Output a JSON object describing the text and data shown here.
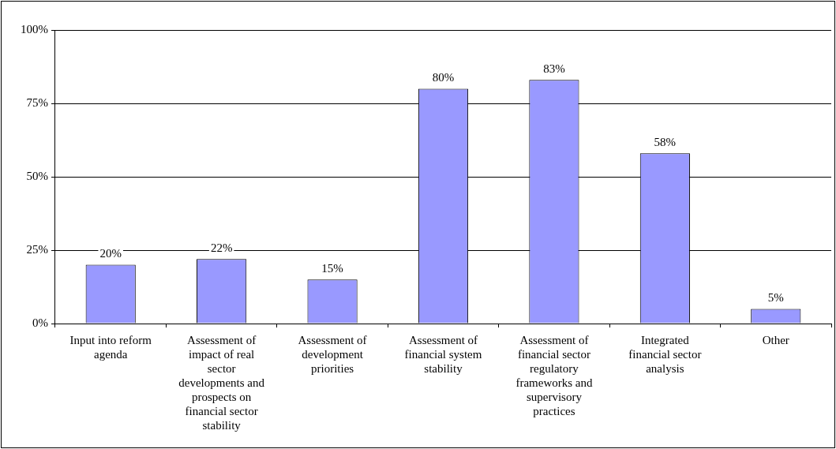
{
  "chart_data": {
    "type": "bar",
    "categories": [
      "Input into reform agenda",
      "Assessment of impact of real sector developments and prospects on financial sector stability",
      "Assessment of development priorities",
      "Assessment of financial system stability",
      "Assessment of financial sector regulatory frameworks and supervisory practices",
      "Integrated financial sector analysis",
      "Other"
    ],
    "values": [
      20,
      22,
      15,
      80,
      83,
      58,
      5
    ],
    "color": "#9999ff",
    "ylim": [
      0,
      100
    ],
    "yticks": [
      {
        "value": 0,
        "label": "0%"
      },
      {
        "value": 25,
        "label": "25%"
      },
      {
        "value": 50,
        "label": "50%"
      },
      {
        "value": 75,
        "label": "75%"
      },
      {
        "value": 100,
        "label": "100%"
      }
    ],
    "value_labels": [
      "20%",
      "22%",
      "15%",
      "80%",
      "83%",
      "58%",
      "5%"
    ],
    "grid": "y",
    "legend": false
  }
}
